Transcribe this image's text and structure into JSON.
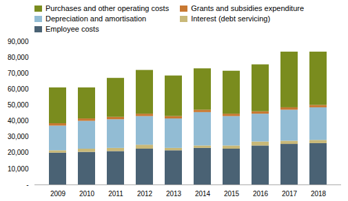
{
  "chart_data": {
    "type": "bar",
    "stacked": true,
    "categories": [
      "2009",
      "2010",
      "2011",
      "2012",
      "2013",
      "2014",
      "2015",
      "2016",
      "2017",
      "2018"
    ],
    "series": [
      {
        "name": "Employee costs",
        "color": "#4a6274",
        "values": [
          20000,
          20500,
          21000,
          22500,
          21500,
          23000,
          22500,
          24500,
          25500,
          26000
        ]
      },
      {
        "name": "Interest (debt servicing)",
        "color": "#c8b878",
        "values": [
          1500,
          2000,
          2000,
          2500,
          1500,
          1500,
          2000,
          2500,
          2000,
          2000
        ]
      },
      {
        "name": "Depreciation and amortisation",
        "color": "#92bcd4",
        "values": [
          15500,
          17500,
          18000,
          18000,
          18500,
          21000,
          18500,
          17500,
          19500,
          20500
        ]
      },
      {
        "name": "Grants and subsidies expenditure",
        "color": "#c87832",
        "values": [
          1500,
          1500,
          1500,
          1500,
          1500,
          1500,
          1500,
          1500,
          1500,
          1500
        ]
      },
      {
        "name": "Purchases and other operating costs",
        "color": "#7a8c1e",
        "values": [
          22500,
          19500,
          24500,
          27500,
          25500,
          26000,
          27000,
          29500,
          35000,
          33500
        ]
      }
    ],
    "ylim": [
      0,
      90000
    ],
    "yticks": [
      {
        "value": 0,
        "label": "-"
      },
      {
        "value": 10000,
        "label": "10,000"
      },
      {
        "value": 20000,
        "label": "20,000"
      },
      {
        "value": 30000,
        "label": "30,000"
      },
      {
        "value": 40000,
        "label": "40,000"
      },
      {
        "value": 50000,
        "label": "50,000"
      },
      {
        "value": 60000,
        "label": "60,000"
      },
      {
        "value": 70000,
        "label": "70,000"
      },
      {
        "value": 80000,
        "label": "80,000"
      },
      {
        "value": 90000,
        "label": "90,000"
      }
    ],
    "grid": false,
    "legend": "top"
  }
}
